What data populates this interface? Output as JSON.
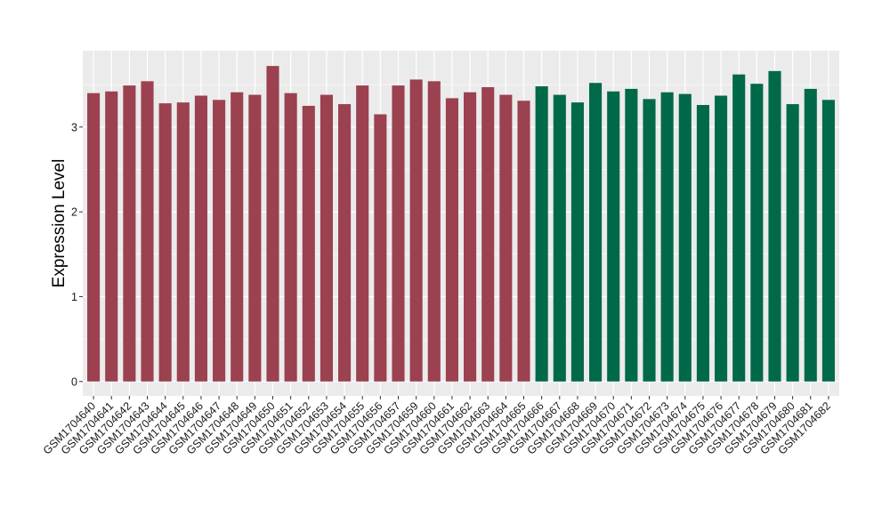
{
  "chart_data": {
    "type": "bar",
    "ylabel": "Expression Level",
    "xlabel": "",
    "ylim": [
      -0.17,
      3.9
    ],
    "yticks": [
      0,
      1,
      2,
      3
    ],
    "grid": true,
    "colors": {
      "group1": "#9b4150",
      "group2": "#00694a",
      "panel": "#ebebeb",
      "gridline": "#ffffff"
    },
    "categories": [
      "GSM1704640",
      "GSM1704641",
      "GSM1704642",
      "GSM1704643",
      "GSM1704644",
      "GSM1704645",
      "GSM1704646",
      "GSM1704647",
      "GSM1704648",
      "GSM1704649",
      "GSM1704650",
      "GSM1704651",
      "GSM1704652",
      "GSM1704653",
      "GSM1704654",
      "GSM1704655",
      "GSM1704656",
      "GSM1704657",
      "GSM1704659",
      "GSM1704660",
      "GSM1704661",
      "GSM1704662",
      "GSM1704663",
      "GSM1704664",
      "GSM1704665",
      "GSM1704666",
      "GSM1704667",
      "GSM1704668",
      "GSM1704669",
      "GSM1704670",
      "GSM1704671",
      "GSM1704672",
      "GSM1704673",
      "GSM1704674",
      "GSM1704675",
      "GSM1704676",
      "GSM1704677",
      "GSM1704678",
      "GSM1704679",
      "GSM1704680",
      "GSM1704681",
      "GSM1704682"
    ],
    "values": [
      3.4,
      3.42,
      3.49,
      3.54,
      3.28,
      3.29,
      3.37,
      3.32,
      3.41,
      3.38,
      3.72,
      3.4,
      3.25,
      3.38,
      3.27,
      3.49,
      3.15,
      3.49,
      3.56,
      3.54,
      3.34,
      3.41,
      3.47,
      3.38,
      3.31,
      3.48,
      3.38,
      3.29,
      3.52,
      3.42,
      3.45,
      3.33,
      3.41,
      3.39,
      3.26,
      3.37,
      3.62,
      3.51,
      3.66,
      3.27,
      3.45,
      3.32
    ],
    "group": [
      1,
      1,
      1,
      1,
      1,
      1,
      1,
      1,
      1,
      1,
      1,
      1,
      1,
      1,
      1,
      1,
      1,
      1,
      1,
      1,
      1,
      1,
      1,
      1,
      1,
      2,
      2,
      2,
      2,
      2,
      2,
      2,
      2,
      2,
      2,
      2,
      2,
      2,
      2,
      2,
      2,
      2
    ]
  }
}
